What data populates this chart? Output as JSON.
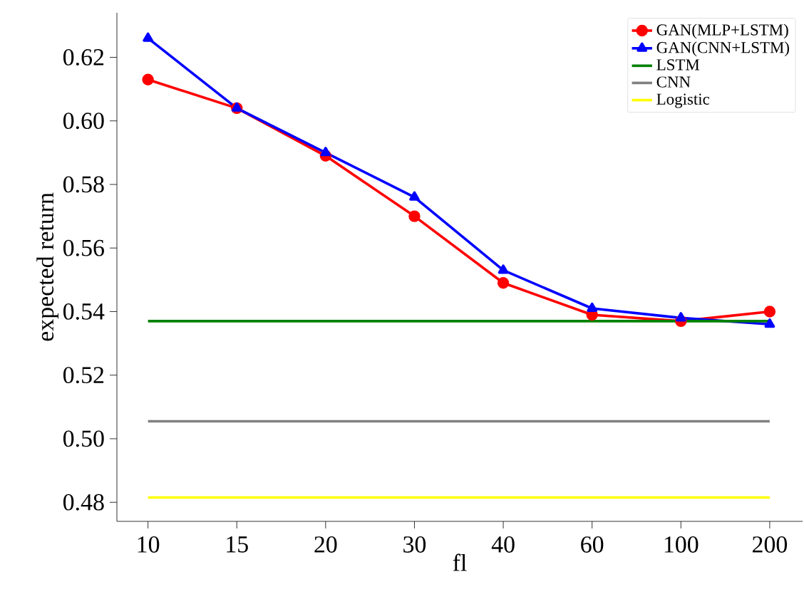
{
  "chart_data": {
    "type": "line",
    "xlabel": "fl",
    "ylabel": "expected return",
    "categories": [
      "10",
      "15",
      "20",
      "30",
      "40",
      "60",
      "100",
      "200"
    ],
    "series": [
      {
        "name": "GAN(MLP+LSTM)",
        "color": "#ff0000",
        "marker": "circle",
        "values": [
          0.613,
          0.604,
          0.589,
          0.57,
          0.549,
          0.539,
          0.537,
          0.54
        ]
      },
      {
        "name": "GAN(CNN+LSTM)",
        "color": "#0000ff",
        "marker": "triangle",
        "values": [
          0.626,
          0.604,
          0.59,
          0.576,
          0.553,
          0.541,
          0.538,
          0.536
        ]
      },
      {
        "name": "LSTM",
        "color": "#008000",
        "marker": "none",
        "values": [
          0.537,
          0.537,
          0.537,
          0.537,
          0.537,
          0.537,
          0.537,
          0.537
        ]
      },
      {
        "name": "CNN",
        "color": "#808080",
        "marker": "none",
        "values": [
          0.5055,
          0.5055,
          0.5055,
          0.5055,
          0.5055,
          0.5055,
          0.5055,
          0.5055
        ]
      },
      {
        "name": "Logistic",
        "color": "#ffff00",
        "marker": "none",
        "values": [
          0.4815,
          0.4815,
          0.4815,
          0.4815,
          0.4815,
          0.4815,
          0.4815,
          0.4815
        ]
      }
    ],
    "ylim": [
      0.474,
      0.634
    ],
    "yticks": [
      0.48,
      {
        "value": 0.5,
        "label": "0.50"
      },
      0.52,
      0.54,
      0.56,
      0.58,
      {
        "value": 0.6,
        "label": "0.60"
      },
      0.62
    ],
    "grid": false,
    "legend": "top right",
    "line_style": "solid"
  }
}
